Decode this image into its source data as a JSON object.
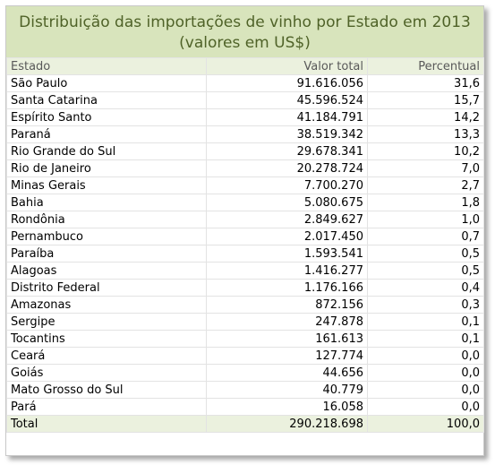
{
  "title": {
    "line1": "Distribuição das importações de vinho por Estado em 2013",
    "line2": "(valores em US$)"
  },
  "table": {
    "headers": [
      "Estado",
      "Valor total",
      "Percentual"
    ],
    "rows": [
      [
        "São Paulo",
        "91.616.056",
        "31,6"
      ],
      [
        "Santa Catarina",
        "45.596.524",
        "15,7"
      ],
      [
        "Espírito Santo",
        "41.184.791",
        "14,2"
      ],
      [
        "Paraná",
        "38.519.342",
        "13,3"
      ],
      [
        "Rio Grande do Sul",
        "29.678.341",
        "10,2"
      ],
      [
        "Rio de Janeiro",
        "20.278.724",
        "7,0"
      ],
      [
        "Minas Gerais",
        "7.700.270",
        "2,7"
      ],
      [
        "Bahia",
        "5.080.675",
        "1,8"
      ],
      [
        "Rondônia",
        "2.849.627",
        "1,0"
      ],
      [
        "Pernambuco",
        "2.017.450",
        "0,7"
      ],
      [
        "Paraíba",
        "1.593.541",
        "0,5"
      ],
      [
        "Alagoas",
        "1.416.277",
        "0,5"
      ],
      [
        "Distrito Federal",
        "1.176.166",
        "0,4"
      ],
      [
        "Amazonas",
        "872.156",
        "0,3"
      ],
      [
        "Sergipe",
        "247.878",
        "0,1"
      ],
      [
        "Tocantins",
        "161.613",
        "0,1"
      ],
      [
        "Ceará",
        "127.774",
        "0,0"
      ],
      [
        "Goiás",
        "44.656",
        "0,0"
      ],
      [
        "Mato Grosso do Sul",
        "40.779",
        "0,0"
      ],
      [
        "Pará",
        "16.058",
        "0,0"
      ]
    ],
    "total": [
      "Total",
      "290.218.698",
      "100,0"
    ]
  }
}
